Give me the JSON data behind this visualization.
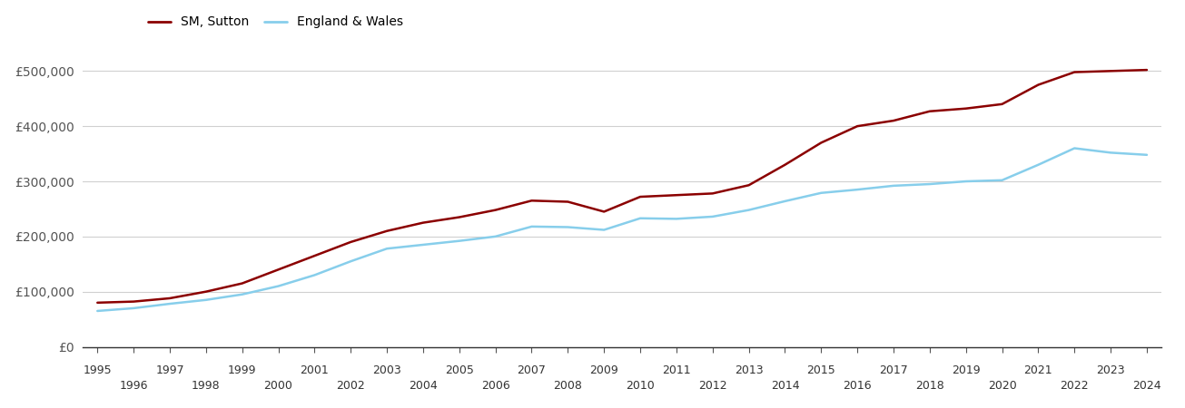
{
  "sutton_years": [
    1995,
    1996,
    1997,
    1998,
    1999,
    2000,
    2001,
    2002,
    2003,
    2004,
    2005,
    2006,
    2007,
    2008,
    2009,
    2010,
    2011,
    2012,
    2013,
    2014,
    2015,
    2016,
    2017,
    2018,
    2019,
    2020,
    2021,
    2022,
    2023,
    2024
  ],
  "sutton_values": [
    80000,
    82000,
    88000,
    100000,
    115000,
    140000,
    165000,
    190000,
    210000,
    225000,
    235000,
    248000,
    265000,
    263000,
    245000,
    272000,
    275000,
    278000,
    293000,
    330000,
    370000,
    400000,
    410000,
    427000,
    432000,
    440000,
    475000,
    498000,
    500000,
    502000
  ],
  "ew_years": [
    1995,
    1996,
    1997,
    1998,
    1999,
    2000,
    2001,
    2002,
    2003,
    2004,
    2005,
    2006,
    2007,
    2008,
    2009,
    2010,
    2011,
    2012,
    2013,
    2014,
    2015,
    2016,
    2017,
    2018,
    2019,
    2020,
    2021,
    2022,
    2023,
    2024
  ],
  "ew_values": [
    65000,
    70000,
    78000,
    85000,
    95000,
    110000,
    130000,
    155000,
    178000,
    185000,
    192000,
    200000,
    218000,
    217000,
    212000,
    233000,
    232000,
    236000,
    248000,
    264000,
    279000,
    285000,
    292000,
    295000,
    300000,
    302000,
    330000,
    360000,
    352000,
    348000
  ],
  "sutton_color": "#8B0000",
  "ew_color": "#87CEEB",
  "sutton_label": "SM, Sutton",
  "ew_label": "England & Wales",
  "ylim": [
    0,
    540000
  ],
  "yticks": [
    0,
    100000,
    200000,
    300000,
    400000,
    500000
  ],
  "ytick_labels": [
    "£0",
    "£100,000",
    "£200,000",
    "£300,000",
    "£400,000",
    "£500,000"
  ],
  "bg_color": "#ffffff",
  "grid_color": "#d0d0d0",
  "line_width": 1.8,
  "xlim": [
    1994.6,
    2024.4
  ],
  "xtick_odd": [
    1995,
    1997,
    1999,
    2001,
    2003,
    2005,
    2007,
    2009,
    2011,
    2013,
    2015,
    2017,
    2019,
    2021,
    2023
  ],
  "xtick_even": [
    1996,
    1998,
    2000,
    2002,
    2004,
    2006,
    2008,
    2010,
    2012,
    2014,
    2016,
    2018,
    2020,
    2022,
    2024
  ]
}
